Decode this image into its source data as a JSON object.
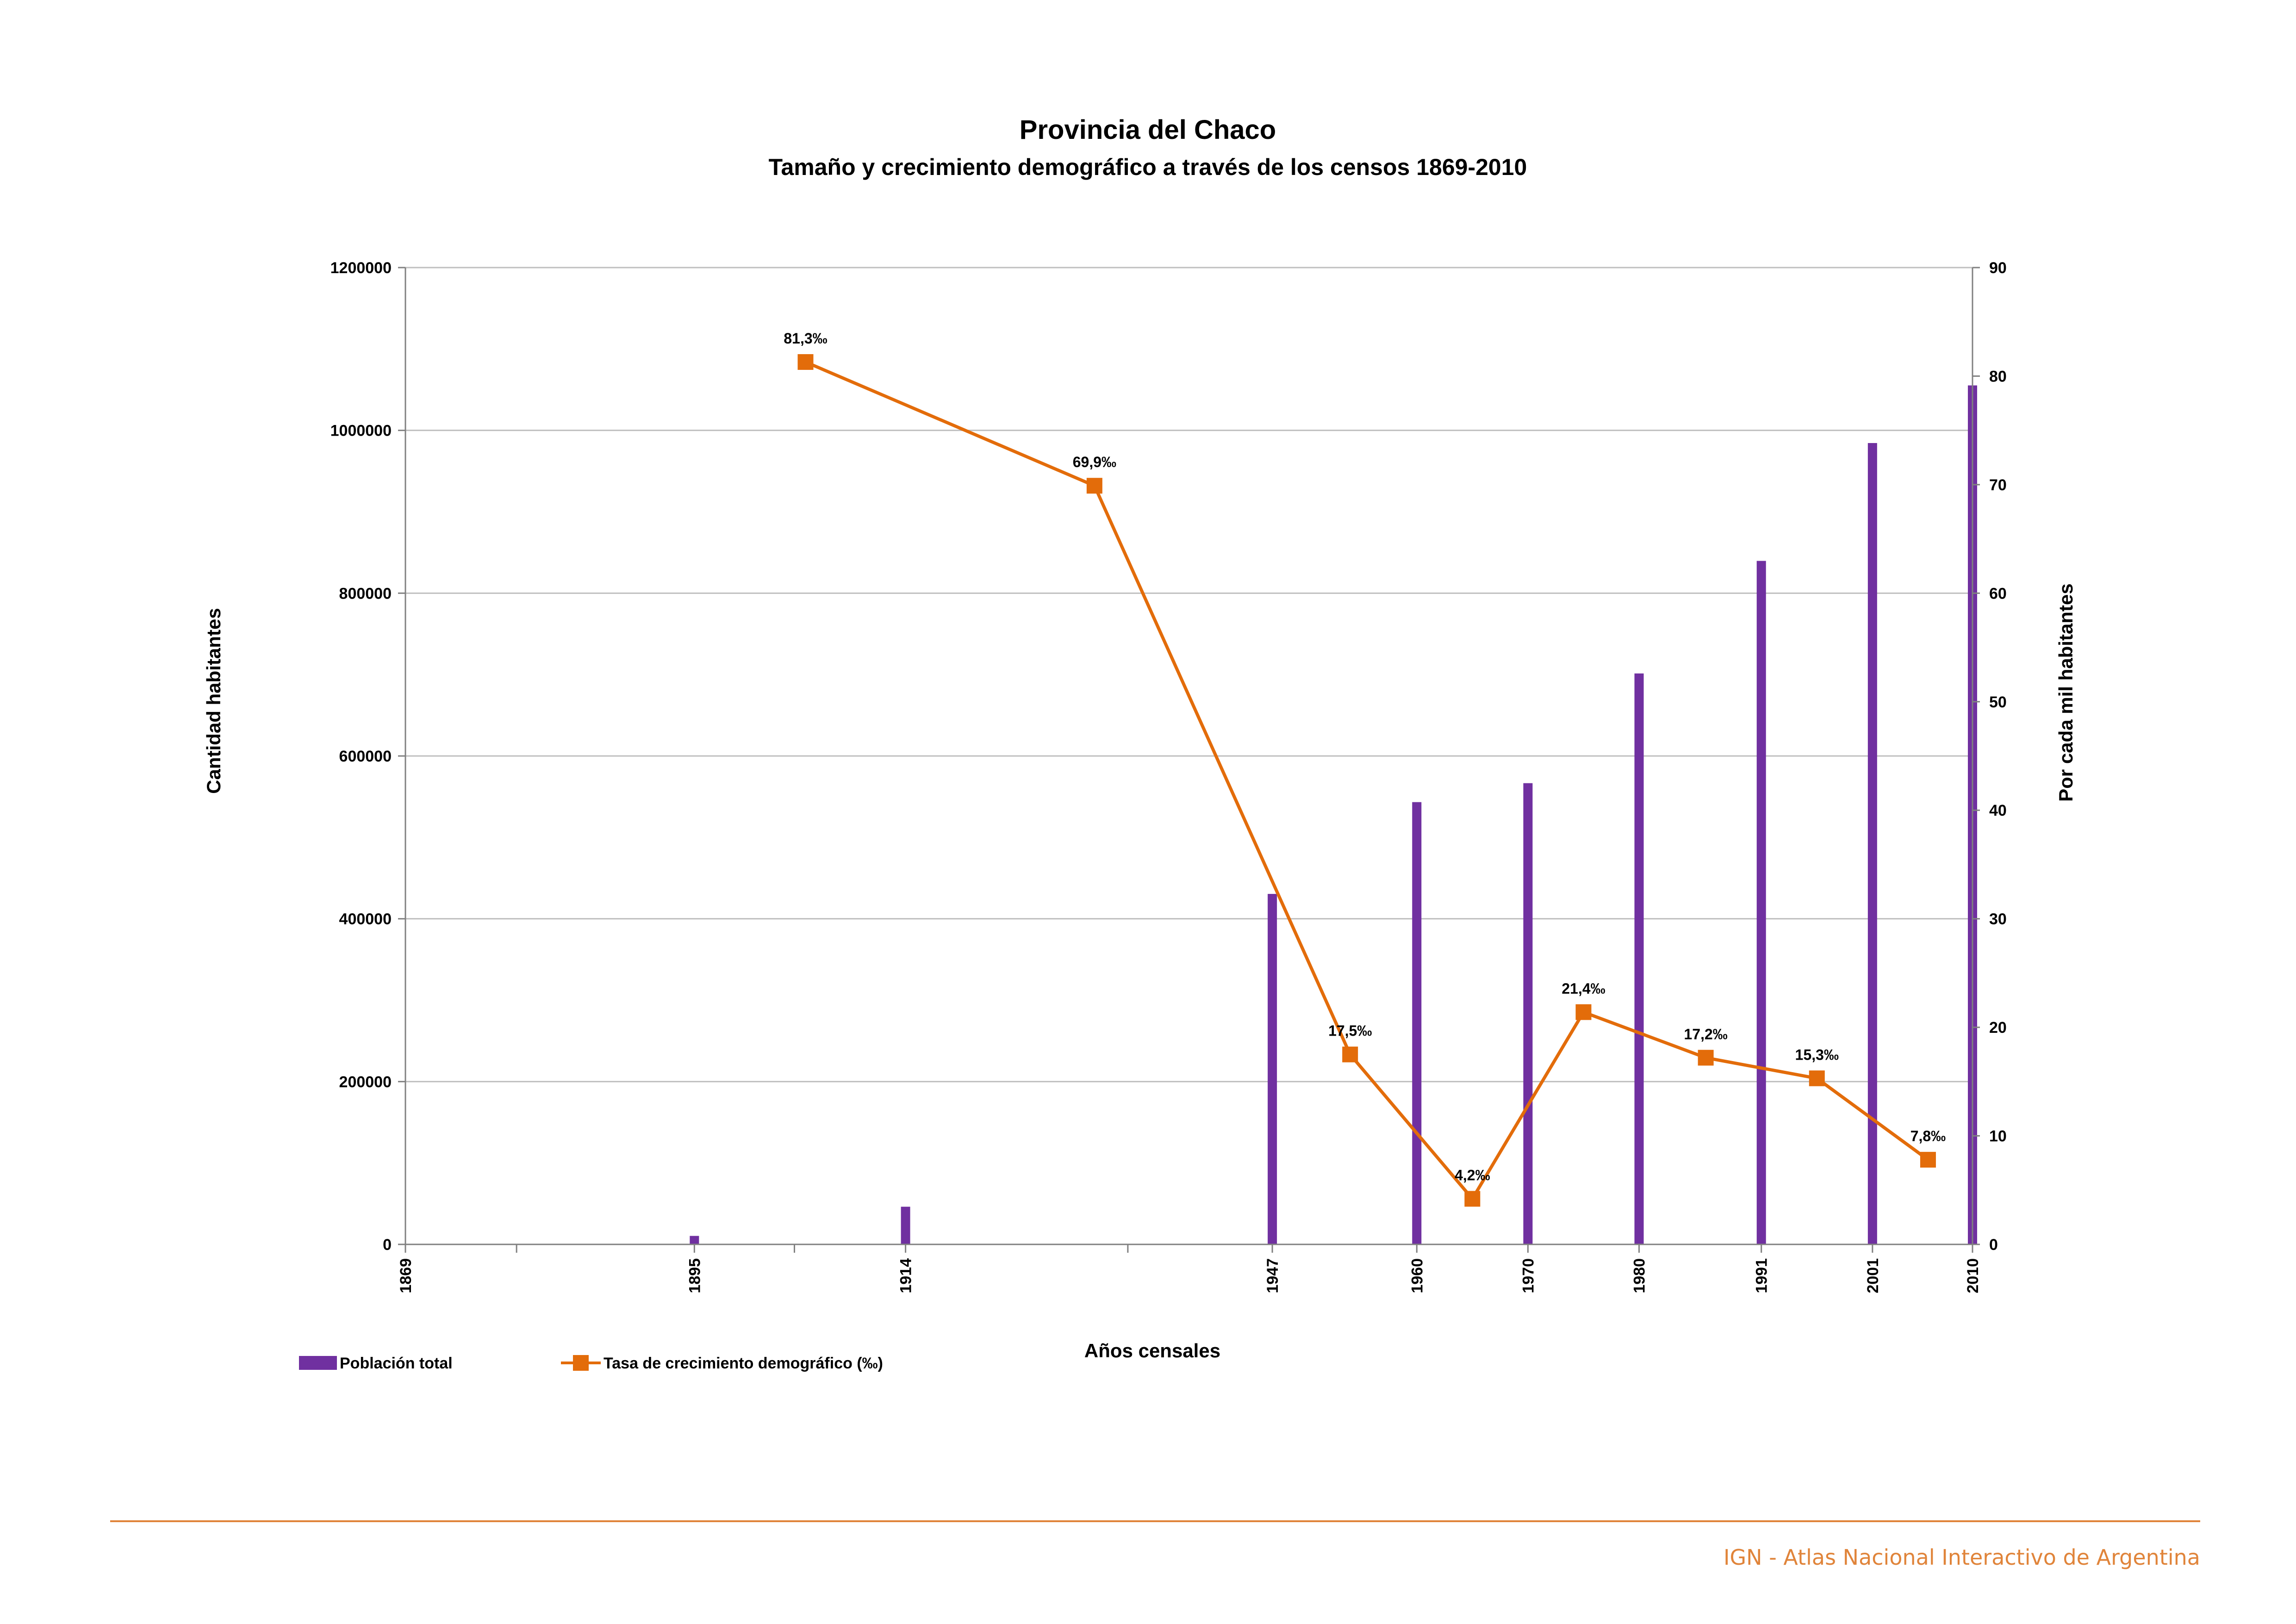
{
  "colors": {
    "bars": "#7030a0",
    "line": "#e36c0a",
    "grid": "#bfbfbf",
    "axis": "#808080",
    "footer": "#e0843a"
  },
  "footer": {
    "text": "IGN - Atlas Nacional Interactivo de Argentina"
  },
  "chart_data": {
    "type": "bar",
    "title": "Provincia del Chaco",
    "subtitle": "Tamaño y crecimiento demográfico a través de los censos 1869-2010",
    "xlabel": "Años censales",
    "ylabel": "Cantidad habitantes",
    "y2label": "Por cada mil habitantes",
    "xlim": [
      1869,
      2010
    ],
    "ylim": [
      0,
      1200000
    ],
    "y2lim": [
      0,
      90
    ],
    "y_ticks": [
      "0",
      "200000",
      "400000",
      "600000",
      "800000",
      "1000000",
      "1200000"
    ],
    "y2_ticks": [
      "0",
      "10",
      "20",
      "30",
      "40",
      "50",
      "60",
      "70",
      "80",
      "90"
    ],
    "x_tick_labels": [
      "1869",
      "1895",
      "1914",
      "1947",
      "1960",
      "1970",
      "1980",
      "1991",
      "2001",
      "2010"
    ],
    "x_minor_ticks": [
      1879,
      1904,
      1934
    ],
    "grid": true,
    "legend_position": "bottom-left",
    "series": [
      {
        "name": "Población total",
        "type": "bar",
        "axis": "left",
        "x": [
          1869,
          1895,
          1914,
          1947,
          1960,
          1970,
          1980,
          1991,
          2001,
          2010
        ],
        "values": [
          0,
          10422,
          46274,
          430555,
          543331,
          566613,
          701392,
          839677,
          984446,
          1055259
        ]
      },
      {
        "name": "Tasa de crecimiento demográfico (‰)",
        "type": "line",
        "axis": "right",
        "x": [
          1905,
          1931,
          1954,
          1965,
          1975,
          1986,
          1996,
          2006
        ],
        "values": [
          81.3,
          69.9,
          17.5,
          4.2,
          21.4,
          17.2,
          15.3,
          7.8
        ],
        "labels": [
          "81,3‰",
          "69,9‰",
          "17,5‰",
          "4,2‰",
          "21,4‰",
          "17,2‰",
          "15,3‰",
          "7,8‰"
        ]
      }
    ]
  }
}
